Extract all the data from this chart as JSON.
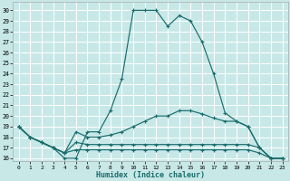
{
  "xlabel": "Humidex (Indice chaleur)",
  "xlim": [
    -0.5,
    23.5
  ],
  "ylim": [
    15.7,
    30.8
  ],
  "yticks": [
    16,
    17,
    18,
    19,
    20,
    21,
    22,
    23,
    24,
    25,
    26,
    27,
    28,
    29,
    30
  ],
  "xticks": [
    0,
    1,
    2,
    3,
    4,
    5,
    6,
    7,
    8,
    9,
    10,
    11,
    12,
    13,
    14,
    15,
    16,
    17,
    18,
    19,
    20,
    21,
    22,
    23
  ],
  "bg_color": "#c8e8e8",
  "grid_color": "#b0d8d8",
  "line_color": "#1a6b6b",
  "lines": [
    {
      "x": [
        0,
        1,
        2,
        3,
        4,
        5,
        6,
        7,
        8,
        9,
        10,
        11,
        12,
        13,
        14,
        15,
        16,
        17,
        18,
        19,
        20,
        21,
        22,
        23
      ],
      "y": [
        19,
        18,
        17.5,
        17,
        16,
        16,
        18.5,
        18.5,
        20.5,
        23.5,
        30,
        30,
        30,
        28.5,
        29.5,
        29.0,
        27,
        24,
        20.3,
        19.5,
        19.0,
        17.0,
        16,
        16
      ]
    },
    {
      "x": [
        0,
        1,
        2,
        3,
        4,
        5,
        6,
        7,
        8,
        9,
        10,
        11,
        12,
        13,
        14,
        15,
        16,
        17,
        18,
        19,
        20,
        21,
        22,
        23
      ],
      "y": [
        19,
        18,
        17.5,
        17,
        16.5,
        18.5,
        18,
        18,
        18.2,
        18.5,
        19,
        19.5,
        20,
        20,
        20.5,
        20.5,
        20.2,
        19.8,
        19.5,
        19.5,
        19.0,
        17,
        16,
        16
      ]
    },
    {
      "x": [
        0,
        1,
        2,
        3,
        4,
        5,
        6,
        7,
        8,
        9,
        10,
        11,
        12,
        13,
        14,
        15,
        16,
        17,
        18,
        19,
        20,
        21,
        22,
        23
      ],
      "y": [
        19,
        18,
        17.5,
        17,
        16.5,
        17.5,
        17.3,
        17.3,
        17.3,
        17.3,
        17.3,
        17.3,
        17.3,
        17.3,
        17.3,
        17.3,
        17.3,
        17.3,
        17.3,
        17.3,
        17.3,
        17,
        16,
        16
      ]
    },
    {
      "x": [
        0,
        1,
        2,
        3,
        4,
        5,
        6,
        7,
        8,
        9,
        10,
        11,
        12,
        13,
        14,
        15,
        16,
        17,
        18,
        19,
        20,
        21,
        22,
        23
      ],
      "y": [
        19,
        18,
        17.5,
        17,
        16.5,
        16.8,
        16.8,
        16.8,
        16.8,
        16.8,
        16.8,
        16.8,
        16.8,
        16.8,
        16.8,
        16.8,
        16.8,
        16.8,
        16.8,
        16.8,
        16.8,
        16.5,
        16,
        16
      ]
    }
  ]
}
